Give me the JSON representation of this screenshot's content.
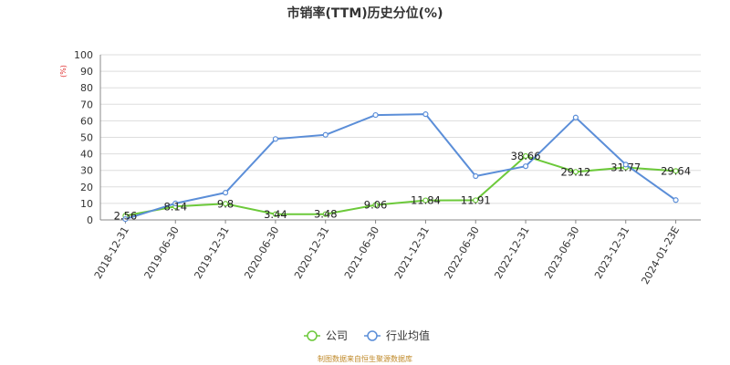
{
  "chart_data": {
    "type": "line",
    "title": "市销率(TTM)历史分位(%)",
    "unit_label": "(%)",
    "categories": [
      "2018-12-31",
      "2019-06-30",
      "2019-12-31",
      "2020-06-30",
      "2020-12-31",
      "2021-06-30",
      "2021-12-31",
      "2022-06-30",
      "2022-12-31",
      "2023-06-30",
      "2023-12-31",
      "2024-01-23E"
    ],
    "ylim": [
      0,
      100
    ],
    "yticks": [
      0,
      10,
      20,
      30,
      40,
      50,
      60,
      70,
      80,
      90,
      100
    ],
    "grid": true,
    "legend_position": "bottom",
    "series": [
      {
        "name": "公司",
        "color": "#6cc93a",
        "values": [
          2.56,
          8.14,
          9.8,
          3.44,
          3.48,
          9.06,
          11.84,
          11.91,
          38.66,
          29.12,
          31.77,
          29.64
        ],
        "labels": [
          "2.56",
          "8.14",
          "9.8",
          "3.44",
          "3.48",
          "9.06",
          "11.84",
          "11.91",
          "38.66",
          "29.12",
          "31.77",
          "29.64"
        ]
      },
      {
        "name": "行业均值",
        "color": "#5b8ed8",
        "values": [
          0.5,
          10,
          16.5,
          49,
          51.5,
          63.5,
          64,
          26.5,
          32.5,
          62,
          33.5,
          12
        ]
      }
    ],
    "source_note": "制图数据来自恒生聚源数据库"
  }
}
